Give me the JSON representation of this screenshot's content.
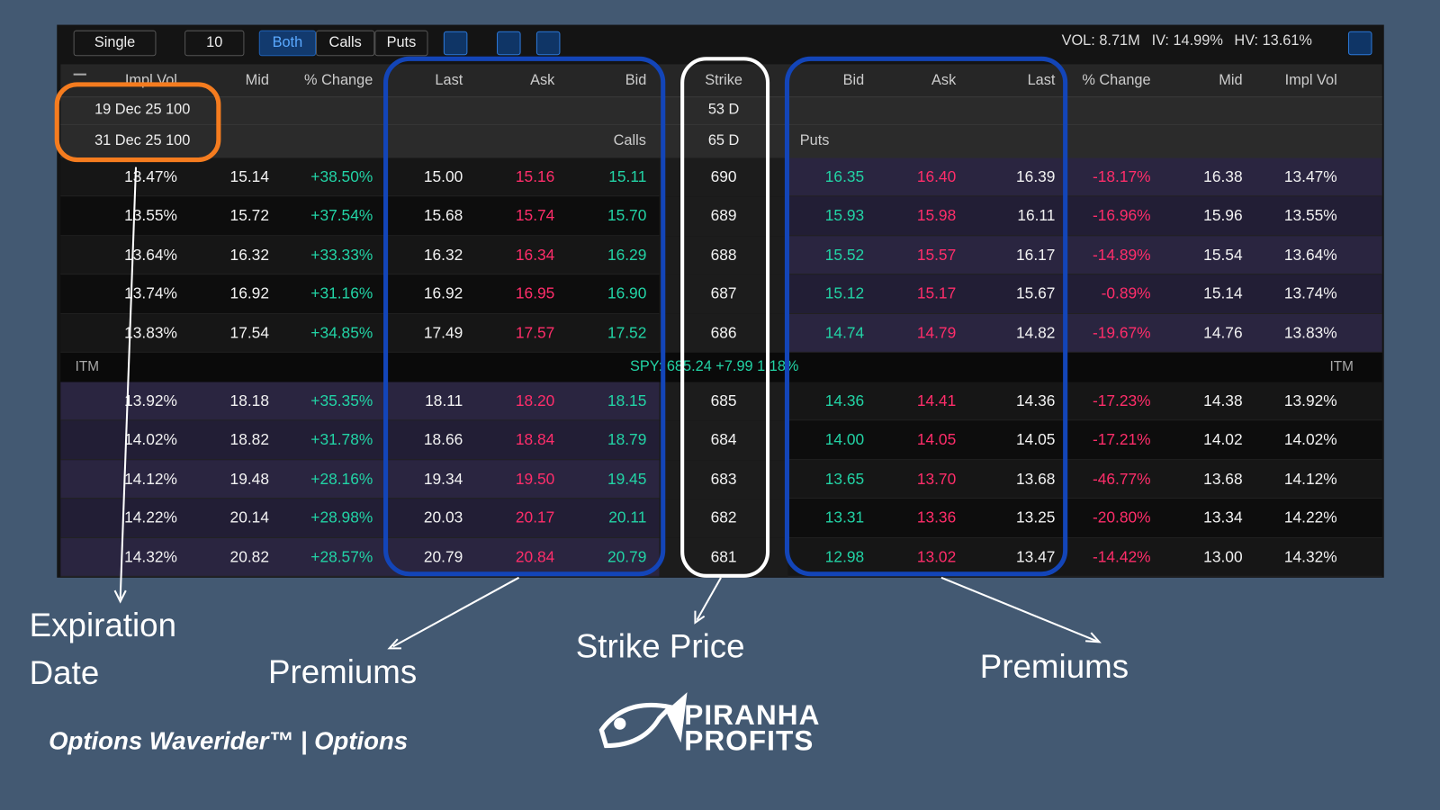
{
  "toolbar": {
    "mode": "Single",
    "count": "10",
    "filters": [
      "Both",
      "Calls",
      "Puts"
    ],
    "stats": [
      "VOL: 8.71M",
      "IV: 14.99%",
      "HV: 13.61%"
    ]
  },
  "table": {
    "headers": [
      "Impl Vol",
      "Mid",
      "% Change",
      "Last",
      "Ask",
      "Bid",
      "Strike",
      "Bid",
      "Ask",
      "Last",
      "% Change",
      "Mid",
      "Impl Vol"
    ],
    "expirations": [
      {
        "label": "19 Dec 25 100",
        "days": "53 D"
      },
      {
        "label": "31 Dec 25 100",
        "days": "65 D"
      }
    ],
    "calls_label": "Calls",
    "puts_label": "Puts",
    "rows_above": [
      [
        "13.47%",
        "15.14",
        "+38.50%",
        "15.00",
        "15.16",
        "15.11",
        "690",
        "16.35",
        "16.40",
        "16.39",
        "-18.17%",
        "16.38",
        "13.47%"
      ],
      [
        "13.55%",
        "15.72",
        "+37.54%",
        "15.68",
        "15.74",
        "15.70",
        "689",
        "15.93",
        "15.98",
        "16.11",
        "-16.96%",
        "15.96",
        "13.55%"
      ],
      [
        "13.64%",
        "16.32",
        "+33.33%",
        "16.32",
        "16.34",
        "16.29",
        "688",
        "15.52",
        "15.57",
        "16.17",
        "-14.89%",
        "15.54",
        "13.64%"
      ],
      [
        "13.74%",
        "16.92",
        "+31.16%",
        "16.92",
        "16.95",
        "16.90",
        "687",
        "15.12",
        "15.17",
        "15.67",
        "-0.89%",
        "15.14",
        "13.74%"
      ],
      [
        "13.83%",
        "17.54",
        "+34.85%",
        "17.49",
        "17.57",
        "17.52",
        "686",
        "14.74",
        "14.79",
        "14.82",
        "-19.67%",
        "14.76",
        "13.83%"
      ]
    ],
    "itm_label": "ITM",
    "underlying": "SPY: 685.24 +7.99 1.18%",
    "rows_below": [
      [
        "13.92%",
        "18.18",
        "+35.35%",
        "18.11",
        "18.20",
        "18.15",
        "685",
        "14.36",
        "14.41",
        "14.36",
        "-17.23%",
        "14.38",
        "13.92%"
      ],
      [
        "14.02%",
        "18.82",
        "+31.78%",
        "18.66",
        "18.84",
        "18.79",
        "684",
        "14.00",
        "14.05",
        "14.05",
        "-17.21%",
        "14.02",
        "14.02%"
      ],
      [
        "14.12%",
        "19.48",
        "+28.16%",
        "19.34",
        "19.50",
        "19.45",
        "683",
        "13.65",
        "13.70",
        "13.68",
        "-46.77%",
        "13.68",
        "14.12%"
      ],
      [
        "14.22%",
        "20.14",
        "+28.98%",
        "20.03",
        "20.17",
        "20.11",
        "682",
        "13.31",
        "13.36",
        "13.25",
        "-20.80%",
        "13.34",
        "14.22%"
      ],
      [
        "14.32%",
        "20.82",
        "+28.57%",
        "20.79",
        "20.84",
        "20.79",
        "681",
        "12.98",
        "13.02",
        "13.47",
        "-14.42%",
        "13.00",
        "14.32%"
      ]
    ]
  },
  "annotations": [
    "Expiration Date",
    "Premiums",
    "Strike Price",
    "Premiums"
  ],
  "footer": {
    "caption": "Options Waverider™ | Options",
    "logo": [
      "PIRANHA",
      "PROFITS"
    ]
  }
}
